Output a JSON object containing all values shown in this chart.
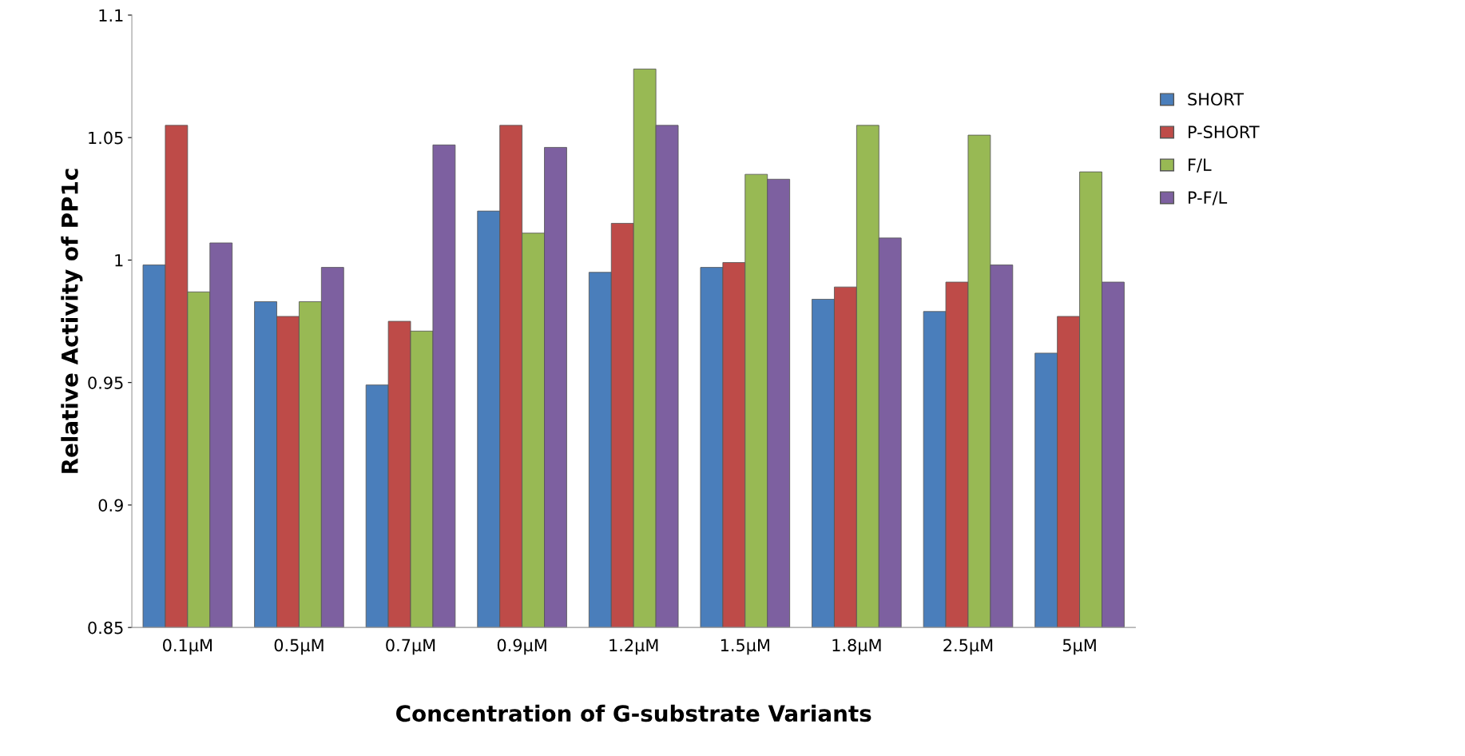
{
  "chart_data": {
    "type": "bar",
    "xlabel": "Concentration of G-substrate Variants",
    "ylabel": "Relative Activity of PP1c",
    "categories": [
      "0.1µM",
      "0.5µM",
      "0.7µM",
      "0.9µM",
      "1.2µM",
      "1.5µM",
      "1.8µM",
      "2.5µM",
      "5µM"
    ],
    "series": [
      {
        "name": "SHORT",
        "color": "#4a7ebb",
        "values": [
          0.998,
          0.983,
          0.949,
          1.02,
          0.995,
          0.997,
          0.984,
          0.979,
          0.962
        ]
      },
      {
        "name": "P-SHORT",
        "color": "#be4b48",
        "values": [
          1.055,
          0.977,
          0.975,
          1.055,
          1.015,
          0.999,
          0.989,
          0.991,
          0.977
        ]
      },
      {
        "name": "F/L",
        "color": "#98b954",
        "values": [
          0.987,
          0.983,
          0.971,
          1.011,
          1.078,
          1.035,
          1.055,
          1.051,
          1.036
        ]
      },
      {
        "name": "P-F/L",
        "color": "#7d60a0",
        "values": [
          1.007,
          0.997,
          1.047,
          1.046,
          1.055,
          1.033,
          1.009,
          0.998,
          0.991
        ]
      }
    ],
    "ylim": [
      0.85,
      1.1
    ],
    "yticks": [
      0.85,
      0.9,
      0.95,
      {
        "value": 1.0,
        "label": "1"
      },
      1.05,
      1.1
    ],
    "grid": false,
    "legend": "right"
  }
}
